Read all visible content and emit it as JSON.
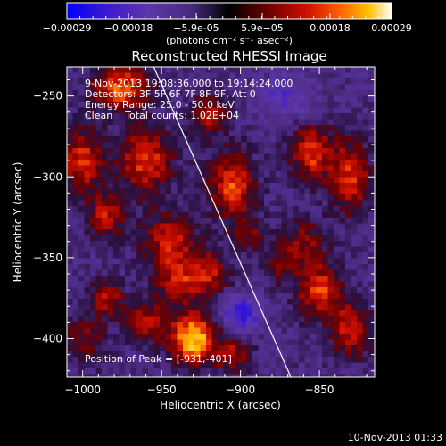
{
  "chart_data": {
    "type": "heatmap",
    "title": "Reconstructed RHESSI Image",
    "xlabel": "Heliocentric X (arcsec)",
    "ylabel": "Heliocentric Y (arcsec)",
    "xlim": [
      -1010,
      -815
    ],
    "ylim": [
      -424,
      -232
    ],
    "x_ticks": [
      -1000,
      -950,
      -900,
      -850
    ],
    "y_ticks": [
      -400,
      -350,
      -300,
      -250
    ],
    "colorbar": {
      "range": [
        -0.00029,
        0.00029
      ],
      "tick_values": [
        -0.00029,
        -0.00018,
        -5.9e-05,
        5.9e-05,
        0.00018,
        0.00029
      ],
      "tick_labels": [
        "-0.00029",
        "-0.00018",
        "-5.9e-05",
        "5.9e-05",
        "0.00018",
        "0.00029"
      ],
      "unit_label": "(photons cm⁻² s⁻¹ asec⁻²)"
    },
    "annotations": {
      "time_range": "9-Nov-2013 19:08:36.000 to 19:14:24.000",
      "detectors": "Detectors: 3F 5F 6F 7F 8F 9F, Att 0",
      "energy_range": "Energy Range: 25.0 - 50.0 keV",
      "algorithm": "Clean    Total counts: 1.02E+04",
      "peak_position": "Position of Peak = [-931,-401]"
    },
    "limb_line": [
      [
        -955,
        -232
      ],
      [
        -868,
        -424
      ]
    ],
    "peak": {
      "x": -931,
      "y": -401
    },
    "emission_blobs": [
      {
        "x": -975,
        "y": -245,
        "sx": 12,
        "sy": 10,
        "a": 0.85
      },
      {
        "x": -960,
        "y": -290,
        "sx": 12,
        "sy": 14,
        "a": 0.75
      },
      {
        "x": -1000,
        "y": -290,
        "sx": 10,
        "sy": 14,
        "a": 0.7
      },
      {
        "x": -985,
        "y": -325,
        "sx": 9,
        "sy": 10,
        "a": 0.6
      },
      {
        "x": -945,
        "y": -340,
        "sx": 12,
        "sy": 12,
        "a": 0.65
      },
      {
        "x": -905,
        "y": -305,
        "sx": 10,
        "sy": 14,
        "a": 0.8
      },
      {
        "x": -920,
        "y": -262,
        "sx": 8,
        "sy": 10,
        "a": 0.55
      },
      {
        "x": -920,
        "y": -360,
        "sx": 9,
        "sy": 10,
        "a": 0.6
      },
      {
        "x": -940,
        "y": -365,
        "sx": 10,
        "sy": 10,
        "a": 0.55
      },
      {
        "x": -930,
        "y": -400,
        "sx": 10,
        "sy": 11,
        "a": 1.15
      },
      {
        "x": -905,
        "y": -410,
        "sx": 8,
        "sy": 8,
        "a": 0.55
      },
      {
        "x": -960,
        "y": -390,
        "sx": 10,
        "sy": 9,
        "a": 0.55
      },
      {
        "x": -985,
        "y": -375,
        "sx": 8,
        "sy": 8,
        "a": 0.55
      },
      {
        "x": -1000,
        "y": -400,
        "sx": 10,
        "sy": 10,
        "a": 0.45
      },
      {
        "x": -855,
        "y": -285,
        "sx": 10,
        "sy": 12,
        "a": 0.75
      },
      {
        "x": -830,
        "y": -300,
        "sx": 9,
        "sy": 16,
        "a": 0.7
      },
      {
        "x": -860,
        "y": -340,
        "sx": 10,
        "sy": 10,
        "a": 0.45
      },
      {
        "x": -850,
        "y": -370,
        "sx": 10,
        "sy": 12,
        "a": 0.75
      },
      {
        "x": -830,
        "y": -395,
        "sx": 9,
        "sy": 12,
        "a": 0.65
      },
      {
        "x": -875,
        "y": -355,
        "sx": 7,
        "sy": 8,
        "a": 0.4
      },
      {
        "x": -895,
        "y": -335,
        "sx": 7,
        "sy": 8,
        "a": 0.4
      },
      {
        "x": -900,
        "y": -385,
        "sx": 10,
        "sy": 8,
        "a": -0.55
      },
      {
        "x": -870,
        "y": -250,
        "sx": 12,
        "sy": 10,
        "a": -0.35
      }
    ]
  },
  "footer": {
    "timestamp": "10-Nov-2013 01:33"
  }
}
